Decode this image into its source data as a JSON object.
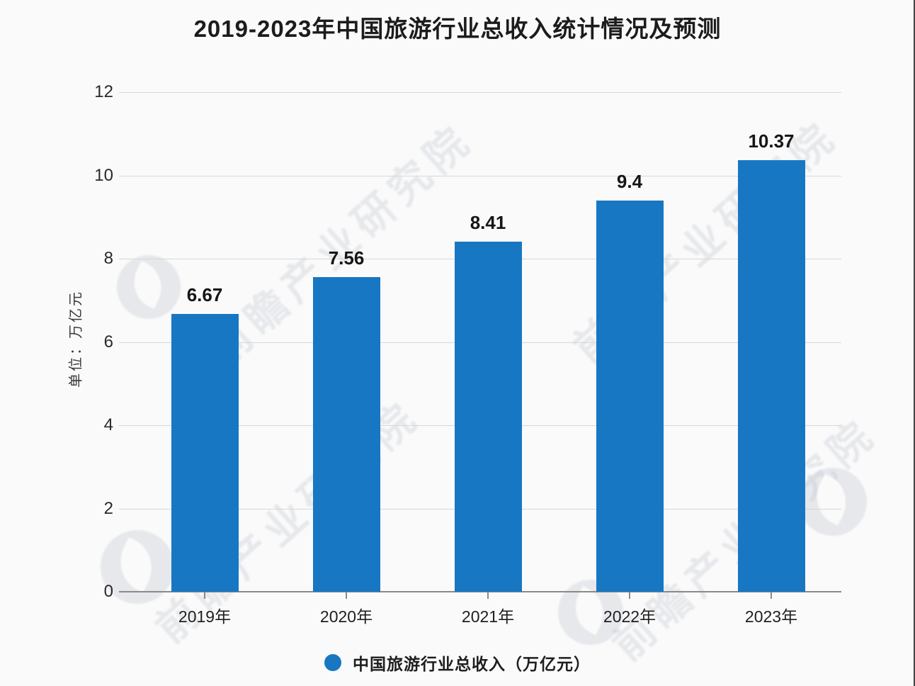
{
  "title": "2019-2023年中国旅游行业总收入统计情况及预测",
  "watermark": {
    "text": "前瞻产业研究院"
  },
  "colors": {
    "bar": "#1877C2",
    "background": "#fafafa",
    "gridline": "#d7d7d7",
    "axis": "#8a8a8a"
  },
  "chart_data": {
    "type": "bar",
    "title": "2019-2023年中国旅游行业总收入统计情况及预测",
    "categories": [
      "2019年",
      "2020年",
      "2021年",
      "2022年",
      "2023年"
    ],
    "values": [
      6.67,
      7.56,
      8.41,
      9.4,
      10.37
    ],
    "value_labels": [
      "6.67",
      "7.56",
      "8.41",
      "9.4",
      "10.37"
    ],
    "series_name": "中国旅游行业总收入",
    "xlabel": "",
    "ylabel": "单位：万亿元",
    "ylim": [
      0,
      12
    ],
    "yticks": [
      0,
      2,
      4,
      6,
      8,
      10,
      12
    ],
    "grid": true,
    "legend": {
      "label": "中国旅游行业总收入（万亿元）",
      "position": "bottom"
    }
  }
}
